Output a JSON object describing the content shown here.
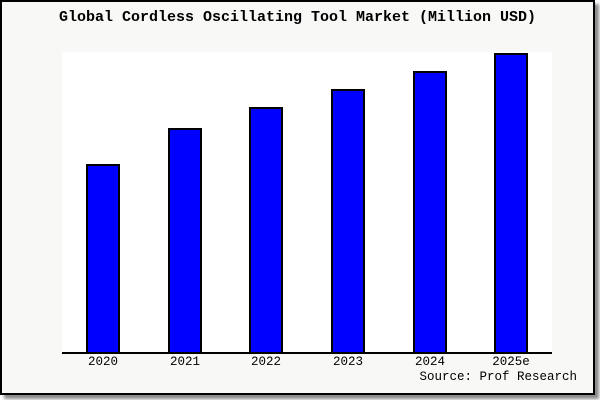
{
  "chart_data": {
    "type": "bar",
    "title": "Global Cordless Oscillating Tool Market (Million USD)",
    "categories": [
      "2020",
      "2021",
      "2022",
      "2023",
      "2024",
      "2025e"
    ],
    "values": [
      63,
      75,
      82,
      88,
      94,
      100
    ],
    "value_note": "No y-axis or data labels shown; values estimated from bar heights relative to 2025e = 100",
    "xlabel": "",
    "ylabel": "",
    "ylim": [
      0,
      100
    ],
    "grid": false,
    "legend": false,
    "bar_color": "#0000ff",
    "bar_outline_color": "#000000",
    "axis_color": "#000000"
  },
  "source": "Source: Prof Research",
  "colors": {
    "plot_background": "#ffffff",
    "canvas_background": "#f8f8f7",
    "frame_border": "#000000",
    "frame_shadow": "#8a8a8a"
  }
}
